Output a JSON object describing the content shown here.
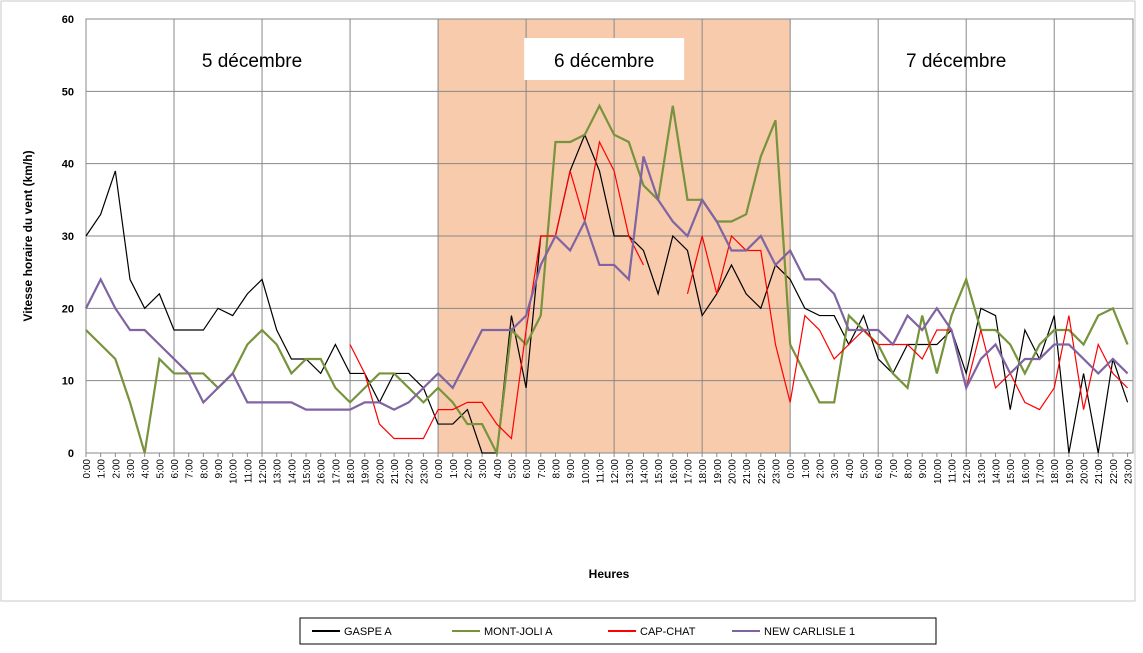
{
  "chart_data": {
    "type": "line",
    "ylabel": "Vitesse horaire du vent (km/h)",
    "xlabel": "Heures",
    "annotations": [
      "5 décembre",
      "6 décembre",
      "7 décembre"
    ],
    "categories": [
      "0:00",
      "1:00",
      "2:00",
      "3:00",
      "4:00",
      "5:00",
      "6:00",
      "7:00",
      "8:00",
      "9:00",
      "10:00",
      "11:00",
      "12:00",
      "13:00",
      "14:00",
      "15:00",
      "16:00",
      "17:00",
      "18:00",
      "19:00",
      "20:00",
      "21:00",
      "22:00",
      "23:00",
      "0:00",
      "1:00",
      "2:00",
      "3:00",
      "4:00",
      "5:00",
      "6:00",
      "7:00",
      "8:00",
      "9:00",
      "10:00",
      "11:00",
      "12:00",
      "13:00",
      "14:00",
      "15:00",
      "16:00",
      "17:00",
      "18:00",
      "19:00",
      "20:00",
      "21:00",
      "22:00",
      "23:00",
      "0:00",
      "1:00",
      "2:00",
      "3:00",
      "4:00",
      "5:00",
      "6:00",
      "7:00",
      "8:00",
      "9:00",
      "10:00",
      "11:00",
      "12:00",
      "13:00",
      "14:00",
      "15:00",
      "16:00",
      "17:00",
      "18:00",
      "19:00",
      "20:00",
      "21:00",
      "22:00",
      "23:00"
    ],
    "series": [
      {
        "name": "GASPE A",
        "color": "#000000",
        "values": [
          30,
          33,
          39,
          24,
          20,
          22,
          17,
          17,
          17,
          20,
          19,
          22,
          24,
          17,
          13,
          13,
          11,
          15,
          11,
          11,
          7,
          11,
          11,
          9,
          4,
          4,
          6,
          0,
          0,
          19,
          9,
          30,
          30,
          39,
          44,
          39,
          30,
          30,
          28,
          22,
          30,
          28,
          19,
          22,
          26,
          22,
          20,
          26,
          24,
          20,
          19,
          19,
          15,
          19,
          13,
          11,
          15,
          15,
          15,
          17,
          11,
          20,
          19,
          6,
          17,
          13,
          19,
          0,
          11,
          0,
          13,
          7
        ]
      },
      {
        "name": "MONT-JOLI A",
        "color": "#77933c",
        "values": [
          17,
          15,
          13,
          7,
          0,
          13,
          11,
          11,
          11,
          9,
          11,
          15,
          17,
          15,
          11,
          13,
          13,
          9,
          7,
          9,
          11,
          11,
          9,
          7,
          9,
          7,
          4,
          4,
          0,
          17,
          15,
          19,
          43,
          43,
          44,
          48,
          44,
          43,
          37,
          35,
          48,
          35,
          35,
          32,
          32,
          33,
          41,
          46,
          15,
          11,
          7,
          7,
          19,
          17,
          15,
          11,
          9,
          19,
          11,
          19,
          24,
          17,
          17,
          15,
          11,
          15,
          17,
          17,
          15,
          19,
          20,
          15
        ]
      },
      {
        "name": "CAP-CHAT",
        "color": "#ff0000",
        "values": [
          null,
          null,
          null,
          null,
          null,
          null,
          null,
          null,
          null,
          null,
          null,
          null,
          null,
          null,
          null,
          null,
          null,
          null,
          15,
          11,
          4,
          2,
          2,
          2,
          6,
          6,
          7,
          7,
          4,
          2,
          17,
          30,
          30,
          39,
          32,
          43,
          39,
          30,
          26,
          null,
          null,
          22,
          30,
          22,
          30,
          28,
          28,
          15,
          7,
          19,
          17,
          13,
          15,
          17,
          15,
          15,
          15,
          13,
          17,
          17,
          9,
          17,
          9,
          11,
          7,
          6,
          9,
          19,
          6,
          15,
          11,
          9
        ]
      },
      {
        "name": "NEW CARLISLE 1",
        "color": "#8064a2",
        "values": [
          20,
          24,
          20,
          17,
          17,
          15,
          13,
          11,
          7,
          9,
          11,
          7,
          7,
          7,
          7,
          6,
          6,
          6,
          6,
          7,
          7,
          6,
          7,
          9,
          11,
          9,
          13,
          17,
          17,
          17,
          19,
          26,
          30,
          28,
          32,
          26,
          26,
          24,
          41,
          35,
          32,
          30,
          35,
          32,
          28,
          28,
          30,
          26,
          28,
          24,
          24,
          22,
          17,
          17,
          17,
          15,
          19,
          17,
          20,
          17,
          9,
          13,
          15,
          11,
          13,
          13,
          15,
          15,
          13,
          11,
          13,
          11
        ]
      }
    ],
    "ylim": [
      0,
      60
    ],
    "yticks": [
      0,
      10,
      20,
      30,
      40,
      50,
      60
    ],
    "grid": true,
    "legend": "bottom"
  }
}
